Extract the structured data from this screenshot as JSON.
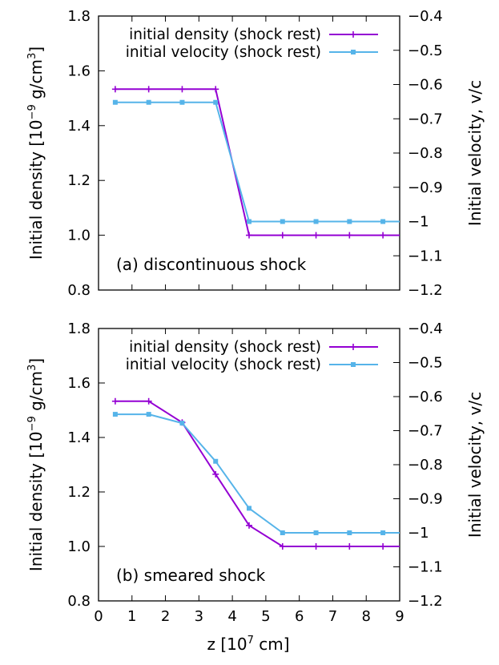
{
  "figure": {
    "xlabel": "z [10",
    "xlabel_exp": "7",
    "xlabel_unit": " cm]"
  },
  "chart_data": [
    {
      "type": "line",
      "panel_label": "(a) discontinuous shock",
      "ylabel_left": "Initial density [10",
      "ylabel_left_exp": "−9",
      "ylabel_left_unit": " g/cm",
      "ylabel_left_unit_exp": "3",
      "ylabel_left_close": "]",
      "ylabel_right": "Initial velocity, v/c",
      "xlim": [
        0,
        9
      ],
      "ylim_left": [
        0.8,
        1.8
      ],
      "ylim_right": [
        -1.2,
        -0.4
      ],
      "xticks": [
        "0",
        "1",
        "2",
        "3",
        "4",
        "5",
        "6",
        "7",
        "8",
        "9"
      ],
      "yticks_left": [
        "0.8",
        "1.0",
        "1.2",
        "1.4",
        "1.6",
        "1.8"
      ],
      "yticks_right": [
        "−1.2",
        "−1.1",
        "−1",
        "−0.9",
        "−0.8",
        "−0.7",
        "−0.6",
        "−0.5",
        "−0.4"
      ],
      "series": [
        {
          "name": "initial density (shock rest)",
          "axis": "left",
          "color": "#9400d3",
          "marker": "plus",
          "x": [
            0.5,
            1.5,
            2.5,
            3.5,
            4.5,
            5.5,
            6.5,
            7.5,
            8.5,
            9.0
          ],
          "y": [
            1.533,
            1.533,
            1.533,
            1.533,
            1.0,
            1.0,
            1.0,
            1.0,
            1.0,
            1.0
          ]
        },
        {
          "name": "initial velocity (shock rest)",
          "axis": "right",
          "color": "#56b4e9",
          "marker": "square",
          "x": [
            0.5,
            1.5,
            2.5,
            3.5,
            4.5,
            5.5,
            6.5,
            7.5,
            8.5,
            9.0
          ],
          "y": [
            -0.652,
            -0.652,
            -0.652,
            -0.652,
            -1.0,
            -1.0,
            -1.0,
            -1.0,
            -1.0,
            -1.0
          ]
        }
      ]
    },
    {
      "type": "line",
      "panel_label": "(b) smeared shock",
      "ylabel_left": "Initial density [10",
      "ylabel_left_exp": "−9",
      "ylabel_left_unit": " g/cm",
      "ylabel_left_unit_exp": "3",
      "ylabel_left_close": "]",
      "ylabel_right": "Initial velocity, v/c",
      "xlim": [
        0,
        9
      ],
      "ylim_left": [
        0.8,
        1.8
      ],
      "ylim_right": [
        -1.2,
        -0.4
      ],
      "xticks": [
        "0",
        "1",
        "2",
        "3",
        "4",
        "5",
        "6",
        "7",
        "8",
        "9"
      ],
      "yticks_left": [
        "0.8",
        "1.0",
        "1.2",
        "1.4",
        "1.6",
        "1.8"
      ],
      "yticks_right": [
        "−1.2",
        "−1.1",
        "−1",
        "−0.9",
        "−0.8",
        "−0.7",
        "−0.6",
        "−0.5",
        "−0.4"
      ],
      "series": [
        {
          "name": "initial density (shock rest)",
          "axis": "left",
          "color": "#9400d3",
          "marker": "plus",
          "x": [
            0.5,
            1.5,
            2.5,
            3.5,
            4.5,
            5.5,
            6.5,
            7.5,
            8.5,
            9.0
          ],
          "y": [
            1.533,
            1.533,
            1.455,
            1.265,
            1.077,
            1.0,
            1.0,
            1.0,
            1.0,
            1.0
          ]
        },
        {
          "name": "initial velocity (shock rest)",
          "axis": "right",
          "color": "#56b4e9",
          "marker": "square",
          "x": [
            0.5,
            1.5,
            2.5,
            3.5,
            4.5,
            5.5,
            6.5,
            7.5,
            8.5,
            9.0
          ],
          "y": [
            -0.652,
            -0.652,
            -0.678,
            -0.79,
            -0.928,
            -1.0,
            -1.0,
            -1.0,
            -1.0,
            -1.0
          ]
        }
      ]
    }
  ]
}
